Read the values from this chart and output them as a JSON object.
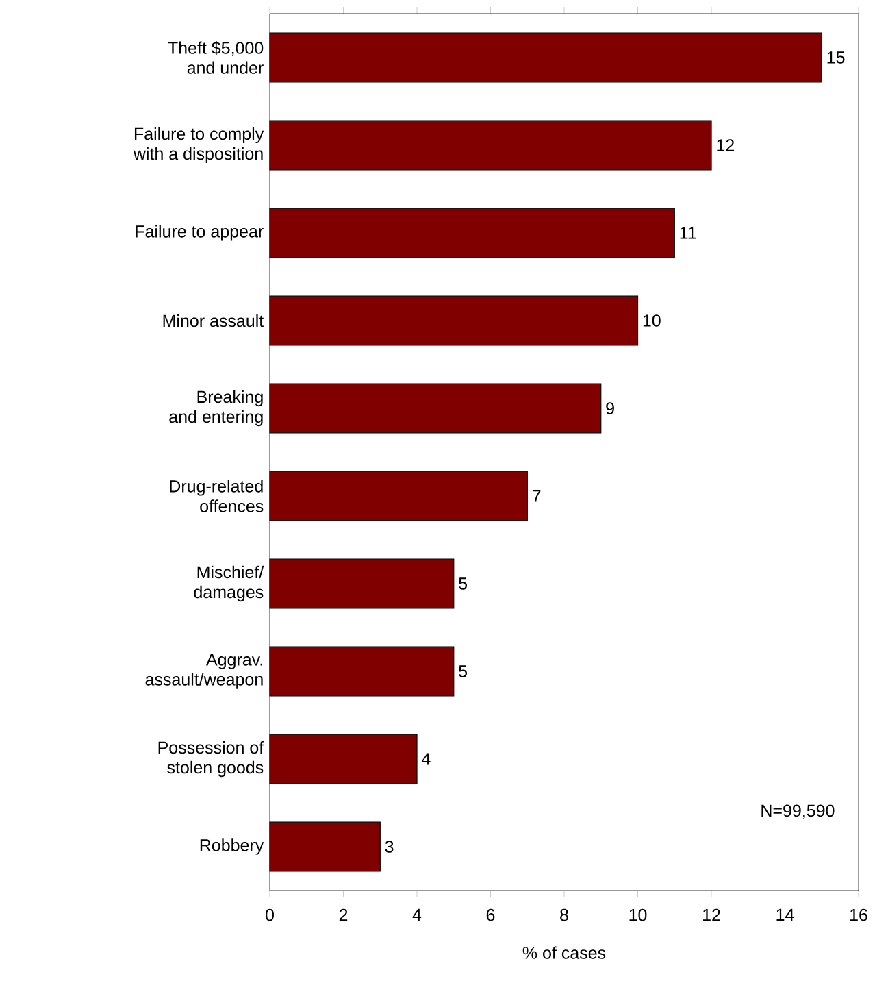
{
  "chart_data": {
    "type": "bar",
    "orientation": "horizontal",
    "xlabel": "% of cases",
    "categories": [
      "Theft $5,000\nand under",
      "Failure to comply\nwith a disposition",
      "Failure to appear",
      "Minor assault",
      "Breaking\nand entering",
      "Drug-related\noffences",
      "Mischief/\ndamages",
      "Aggrav.\nassault/weapon",
      "Possession of\nstolen goods",
      "Robbery"
    ],
    "values": [
      15,
      12,
      11,
      10,
      9,
      7,
      5,
      5,
      4,
      3
    ],
    "color": "#800000",
    "xlim": [
      0,
      16
    ],
    "xticks": [
      0,
      2,
      4,
      6,
      8,
      10,
      12,
      14,
      16
    ],
    "data_labels": true,
    "annotations": [
      "N=99,590"
    ]
  }
}
